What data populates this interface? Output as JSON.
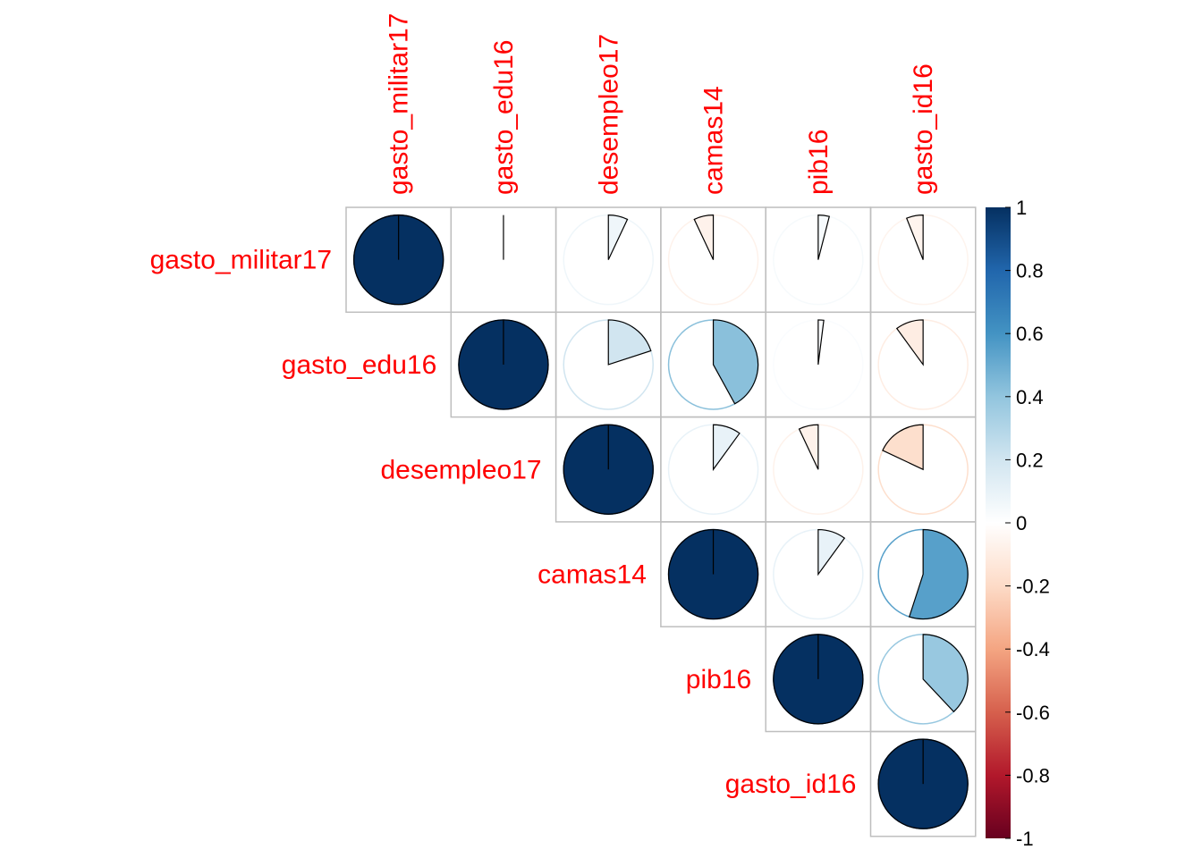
{
  "chart_data": {
    "type": "heatmap",
    "method": "pie",
    "layout": "upper triangle",
    "variables": [
      "gasto_militar17",
      "gasto_edu16",
      "desempleo17",
      "camas14",
      "pib16",
      "gasto_id16"
    ],
    "matrix": [
      [
        1.0,
        0.0,
        0.07,
        -0.07,
        0.04,
        -0.06
      ],
      [
        0.0,
        1.0,
        0.2,
        0.42,
        0.02,
        -0.1
      ],
      [
        0.07,
        0.2,
        1.0,
        0.1,
        -0.07,
        -0.18
      ],
      [
        -0.07,
        0.42,
        0.1,
        1.0,
        0.1,
        0.55
      ],
      [
        0.04,
        0.02,
        -0.07,
        0.1,
        1.0,
        0.38
      ],
      [
        -0.06,
        -0.1,
        -0.18,
        0.55,
        0.38,
        1.0
      ]
    ],
    "colorbar": {
      "range": [
        -1,
        1
      ],
      "ticks": [
        "1",
        "0.8",
        "0.6",
        "0.4",
        "0.2",
        "0",
        "-0.2",
        "-0.4",
        "-0.6",
        "-0.8",
        "-1"
      ],
      "palette": [
        "#67001F",
        "#B2182B",
        "#D6604D",
        "#F4A582",
        "#FDDBC7",
        "#FFFFFF",
        "#D1E5F0",
        "#92C5DE",
        "#4393C3",
        "#2166AC",
        "#053061"
      ]
    },
    "label_color": "#FF0000",
    "grid_color": "#BEBEBE"
  }
}
